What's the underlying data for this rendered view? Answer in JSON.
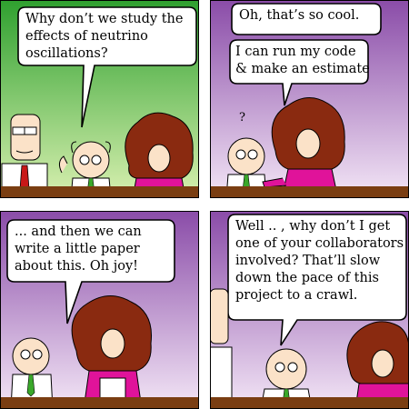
{
  "comic": {
    "panels": [
      {
        "bubbles": [
          {
            "lines": [
              "Why don’t we study the",
              "effects of neutrino",
              "oscillations?"
            ]
          }
        ]
      },
      {
        "bubbles": [
          {
            "lines": [
              "Oh, that’s so cool."
            ]
          },
          {
            "lines": [
              "I can run my code",
              "& make an estimate"
            ]
          }
        ],
        "puzzled_mark": "?"
      },
      {
        "bubbles": [
          {
            "lines": [
              "... and then we can",
              "write a little paper",
              "about this. Oh joy!"
            ]
          }
        ]
      },
      {
        "bubbles": [
          {
            "lines": [
              "Well .. , why don’t I get",
              "one of your collaborators",
              "involved? That’ll slow",
              "down the pace of this",
              "project to a crawl."
            ]
          }
        ]
      }
    ],
    "colors": {
      "panel1_top": "#2fa02f",
      "panel1_bottom": "#d8f0b0",
      "panel_purple_top": "#8a4ca8",
      "panel_purple_bottom": "#f3e6f6",
      "table": "#7a3e12",
      "hair": "#8a2a10",
      "jacket": "#e0139a",
      "tie_green": "#3aa82a",
      "tie_red": "#c81818"
    }
  }
}
